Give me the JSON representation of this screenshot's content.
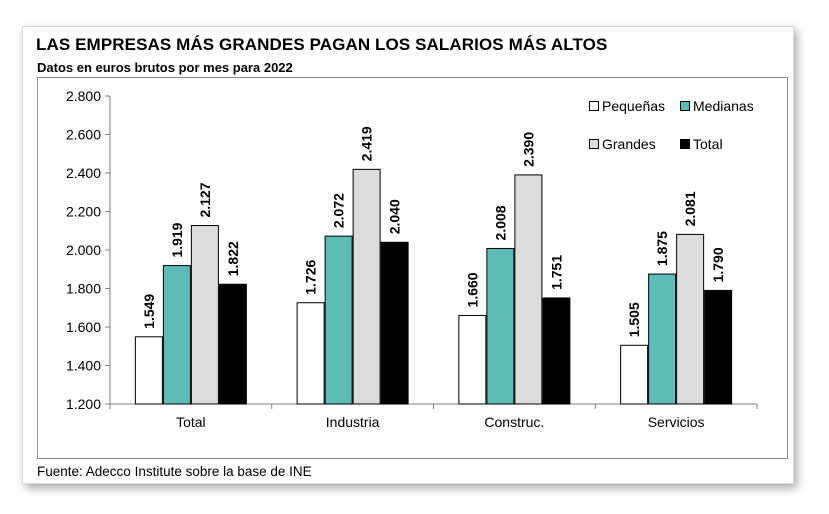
{
  "title": "LAS EMPRESAS MÁS GRANDES PAGAN LOS SALARIOS MÁS ALTOS",
  "subtitle": "Datos en euros brutos por mes para 2022",
  "source": "Fuente: Adecco Institute sobre la base de INE",
  "chart_data": {
    "type": "bar",
    "categories": [
      "Total",
      "Industria",
      "Construc.",
      "Servicios"
    ],
    "series": [
      {
        "name": "Pequeñas",
        "color": "#ffffff",
        "values": [
          1549,
          1726,
          1660,
          1505
        ],
        "labels": [
          "1.549",
          "1.726",
          "1.660",
          "1.505"
        ]
      },
      {
        "name": "Medianas",
        "color": "#5cbcb6",
        "values": [
          1919,
          2072,
          2008,
          1875
        ],
        "labels": [
          "1.919",
          "2.072",
          "2.008",
          "1.875"
        ]
      },
      {
        "name": "Grandes",
        "color": "#dcdcdc",
        "values": [
          2127,
          2419,
          2390,
          2081
        ],
        "labels": [
          "2.127",
          "2.419",
          "2.390",
          "2.081"
        ]
      },
      {
        "name": "Total",
        "color": "#000000",
        "values": [
          1822,
          2040,
          1751,
          1790
        ],
        "labels": [
          "1.822",
          "2.040",
          "1.751",
          "1.790"
        ]
      }
    ],
    "ylim": [
      1200,
      2800
    ],
    "yticks": [
      1200,
      1400,
      1600,
      1800,
      2000,
      2200,
      2400,
      2600,
      2800
    ],
    "ytick_labels": [
      "1.200",
      "1.400",
      "1.600",
      "1.800",
      "2.000",
      "2.200",
      "2.400",
      "2.600",
      "2.800"
    ],
    "grid": false,
    "legend": "top-right",
    "xlabel": "",
    "ylabel": ""
  }
}
